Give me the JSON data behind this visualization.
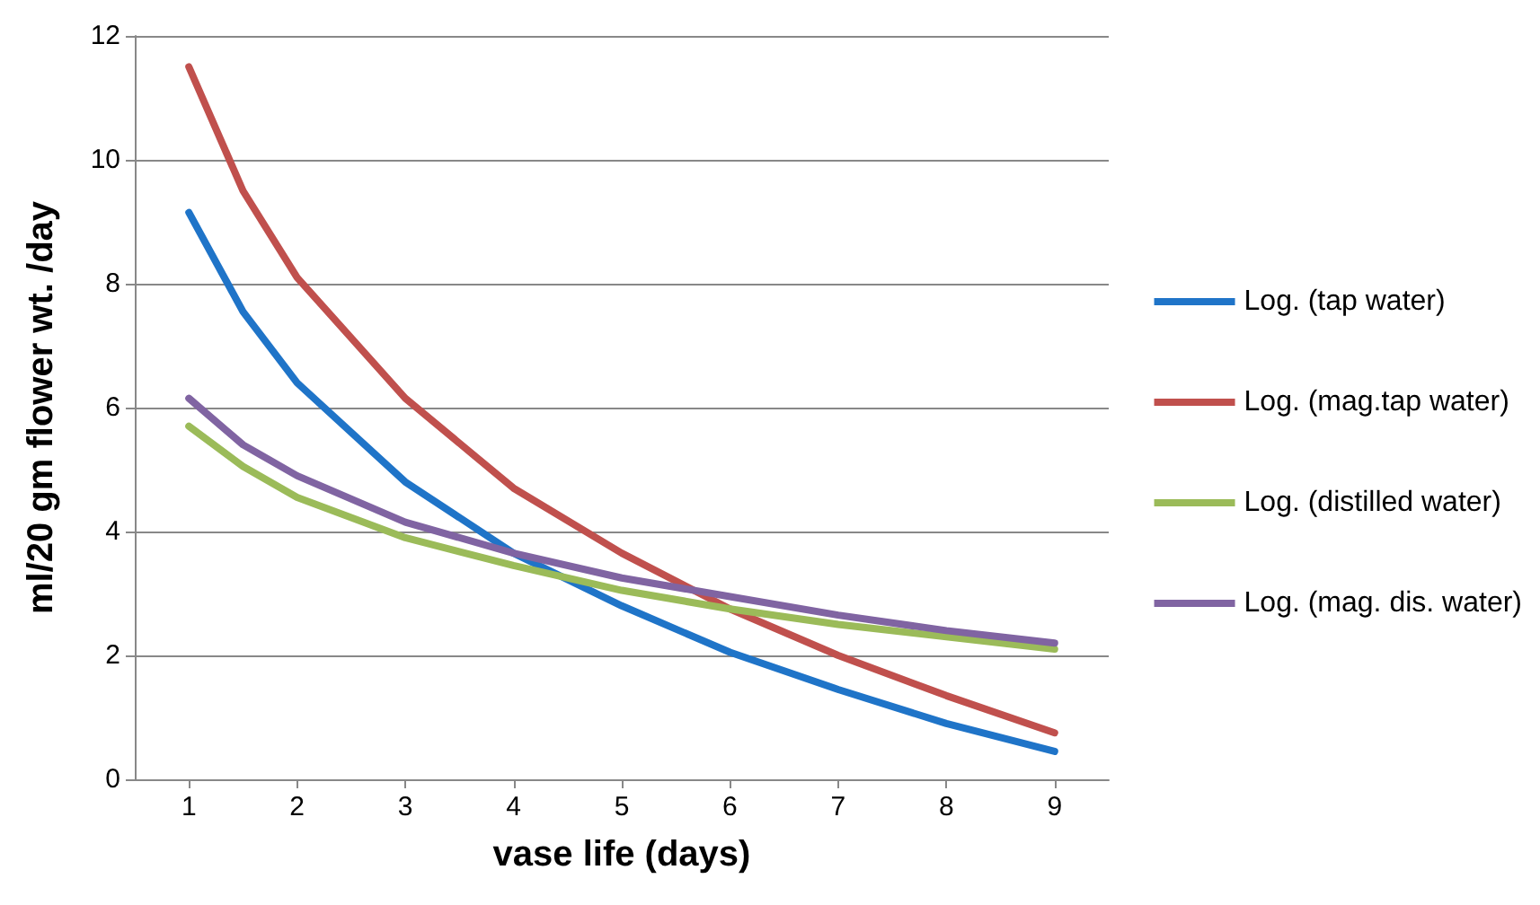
{
  "chart_data": {
    "type": "line",
    "xlabel": "vase life (days)",
    "ylabel": "ml/20 gm flower wt. /day",
    "x": [
      1,
      1.5,
      2,
      3,
      4,
      5,
      6,
      7,
      8,
      9
    ],
    "series": [
      {
        "name": "Log. (tap water)",
        "color": "#1f74c8",
        "values": [
          9.15,
          7.55,
          6.4,
          4.8,
          3.65,
          2.8,
          2.05,
          1.45,
          0.9,
          0.45
        ]
      },
      {
        "name": "Log. (mag.tap water)",
        "color": "#c0504d",
        "values": [
          11.5,
          9.5,
          8.1,
          6.15,
          4.7,
          3.65,
          2.75,
          2,
          1.35,
          0.75
        ]
      },
      {
        "name": "Log. (distilled water)",
        "color": "#9bbb59",
        "values": [
          5.7,
          5.05,
          4.55,
          3.9,
          3.45,
          3.05,
          2.75,
          2.5,
          2.3,
          2.1
        ]
      },
      {
        "name": "Log. (mag. dis. water)",
        "color": "#8064a2",
        "values": [
          6.15,
          5.4,
          4.9,
          4.15,
          3.65,
          3.25,
          2.95,
          2.65,
          2.4,
          2.2
        ]
      }
    ],
    "xlim": [
      0.5,
      9.5
    ],
    "xticks": [
      1,
      2,
      3,
      4,
      5,
      6,
      7,
      8,
      9
    ],
    "ylim": [
      0,
      12
    ],
    "yticks": [
      0,
      2,
      4,
      6,
      8,
      10,
      12
    ],
    "grid": "y",
    "legend": "right",
    "marker": "none",
    "line_style": "solid"
  }
}
